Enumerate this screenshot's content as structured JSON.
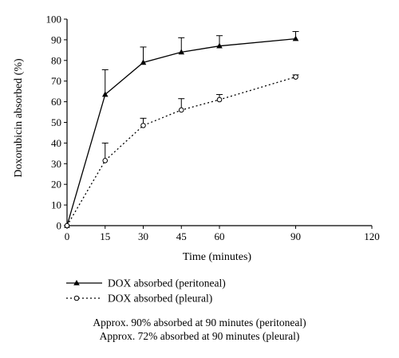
{
  "chart_data": {
    "type": "line",
    "xlabel": "Time (minutes)",
    "ylabel": "Doxorubicin absorbed (%)",
    "xlim": [
      0,
      120
    ],
    "ylim": [
      0,
      100
    ],
    "xticks": [
      0,
      15,
      30,
      45,
      60,
      90,
      120
    ],
    "yticks": [
      0,
      10,
      20,
      30,
      40,
      50,
      60,
      70,
      80,
      90,
      100
    ],
    "grid": false,
    "legend": "below",
    "series": [
      {
        "name": "DOX absorbed (peritoneal)",
        "marker": "filled-triangle",
        "line": "solid",
        "x": [
          0,
          15,
          30,
          45,
          60,
          90
        ],
        "y": [
          0,
          63.5,
          79,
          84,
          87,
          90.5
        ],
        "error_upper": [
          0,
          12,
          7.5,
          7,
          5,
          3.5
        ]
      },
      {
        "name": "DOX absorbed (pleural)",
        "marker": "open-circle",
        "line": "dotted",
        "x": [
          0,
          15,
          30,
          45,
          60,
          90
        ],
        "y": [
          0,
          31.5,
          48.5,
          56,
          61,
          72
        ],
        "error_upper": [
          0,
          8.5,
          3.5,
          5.5,
          2.5,
          1
        ]
      }
    ]
  },
  "notes": [
    "Approx. 90% absorbed at 90 minutes  (peritoneal)",
    "Approx. 72% absorbed at 90 minutes  (pleural)"
  ]
}
